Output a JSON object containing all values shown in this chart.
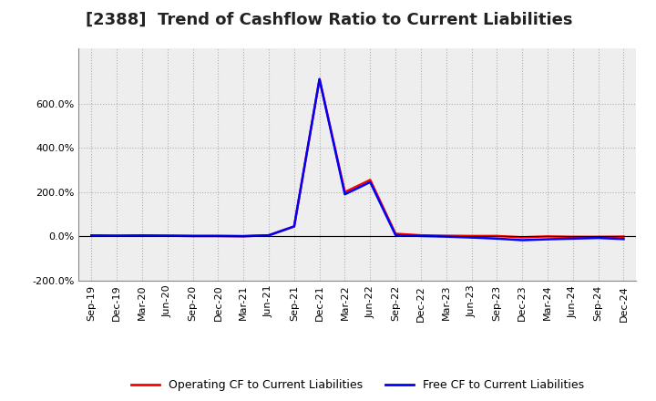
{
  "title": "[2388]  Trend of Cashflow Ratio to Current Liabilities",
  "title_fontsize": 13,
  "legend_labels": [
    "Operating CF to Current Liabilities",
    "Free CF to Current Liabilities"
  ],
  "legend_colors": [
    "#ff0000",
    "#0000ff"
  ],
  "x_labels": [
    "Sep-19",
    "Dec-19",
    "Mar-20",
    "Jun-20",
    "Sep-20",
    "Dec-20",
    "Mar-21",
    "Jun-21",
    "Sep-21",
    "Dec-21",
    "Mar-22",
    "Jun-22",
    "Sep-22",
    "Dec-22",
    "Mar-23",
    "Jun-23",
    "Sep-23",
    "Dec-23",
    "Mar-24",
    "Jun-24",
    "Sep-24",
    "Dec-24"
  ],
  "operating_cf": [
    0.04,
    0.03,
    0.04,
    0.03,
    0.02,
    0.02,
    0.01,
    0.05,
    0.45,
    7.1,
    2.0,
    2.55,
    0.12,
    0.05,
    0.03,
    0.02,
    0.02,
    -0.04,
    0.0,
    -0.02,
    -0.02,
    -0.01
  ],
  "free_cf": [
    0.04,
    0.03,
    0.04,
    0.03,
    0.02,
    0.02,
    0.01,
    0.05,
    0.45,
    7.1,
    1.9,
    2.45,
    0.06,
    0.02,
    -0.01,
    -0.05,
    -0.1,
    -0.17,
    -0.13,
    -0.1,
    -0.07,
    -0.12
  ],
  "ylim_min": -1.0,
  "ylim_max": 8.5,
  "ytick_vals": [
    -2.0,
    0.0,
    2.0,
    4.0,
    6.0
  ],
  "ytick_labels": [
    "-200.0%",
    "0.0%",
    "200.0%",
    "400.0%",
    "600.0%"
  ],
  "background_color": "#ffffff",
  "grid_color": "#b0b0b0",
  "plot_area_color": "#eeeeee"
}
